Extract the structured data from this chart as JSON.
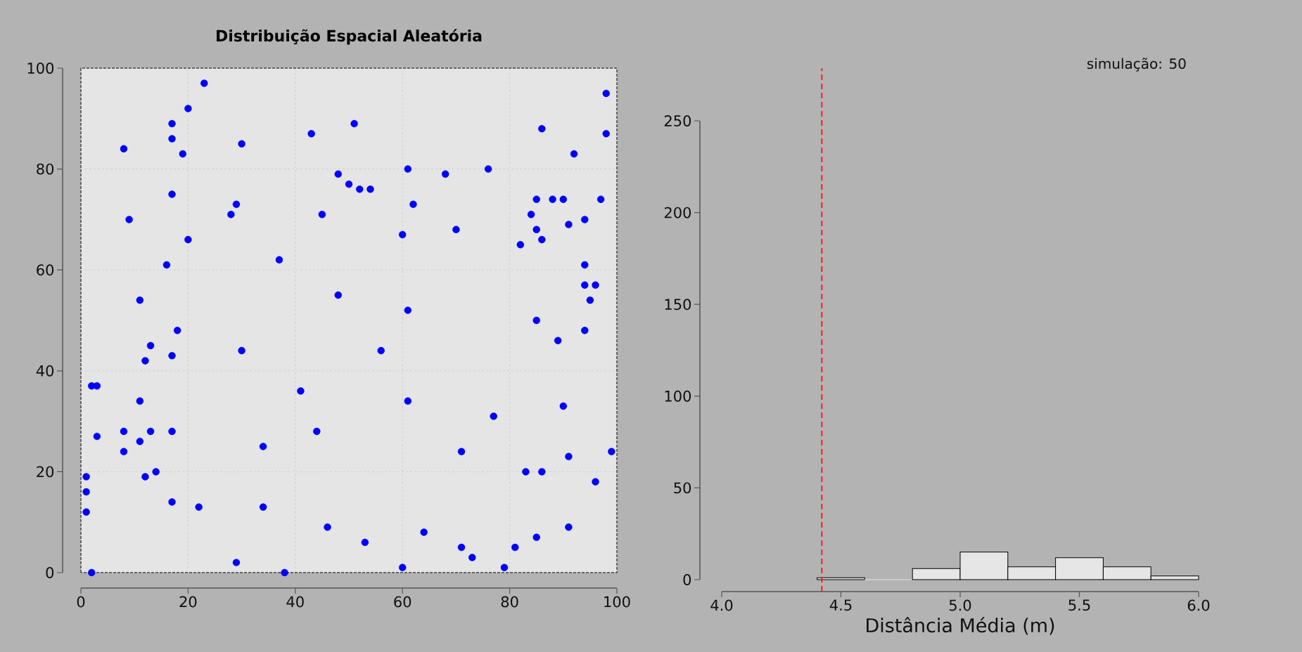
{
  "chart_data": [
    {
      "type": "scatter",
      "title": "Distribuição Espacial Aleatória",
      "color": "#0000ff",
      "marker": "circle",
      "grid": true,
      "xlim": [
        0,
        100
      ],
      "ylim": [
        0,
        100
      ],
      "xticks": [
        0,
        20,
        40,
        60,
        80,
        100
      ],
      "yticks": [
        0,
        20,
        40,
        60,
        80,
        100
      ],
      "x": [
        23,
        20,
        98,
        17,
        51,
        86,
        17,
        43,
        98,
        30,
        8,
        19,
        92,
        61,
        76,
        48,
        68,
        50,
        52,
        54,
        17,
        85,
        88,
        90,
        97,
        29,
        62,
        28,
        45,
        84,
        9,
        94,
        91,
        70,
        85,
        60,
        20,
        86,
        82,
        37,
        16,
        94,
        94,
        96,
        48,
        11,
        95,
        61,
        85,
        18,
        94,
        89,
        13,
        30,
        56,
        17,
        12,
        2,
        3,
        41,
        11,
        61,
        90,
        77,
        8,
        13,
        17,
        44,
        3,
        11,
        34,
        8,
        71,
        99,
        91,
        1,
        12,
        14,
        83,
        86,
        96,
        1,
        17,
        22,
        34,
        1,
        46,
        91,
        64,
        85,
        53,
        71,
        81,
        73,
        29,
        60,
        79,
        2,
        38
      ],
      "values": [
        97,
        92,
        95,
        89,
        89,
        88,
        86,
        87,
        87,
        85,
        84,
        83,
        83,
        80,
        80,
        79,
        79,
        77,
        76,
        76,
        75,
        74,
        74,
        74,
        74,
        73,
        73,
        71,
        71,
        71,
        70,
        70,
        69,
        68,
        68,
        67,
        66,
        66,
        65,
        62,
        61,
        61,
        57,
        57,
        55,
        54,
        54,
        52,
        50,
        48,
        48,
        46,
        45,
        44,
        44,
        43,
        42,
        37,
        37,
        36,
        34,
        34,
        33,
        31,
        28,
        28,
        28,
        28,
        27,
        26,
        25,
        24,
        24,
        24,
        23,
        19,
        19,
        20,
        20,
        20,
        18,
        16,
        14,
        13,
        13,
        12,
        9,
        9,
        8,
        7,
        6,
        5,
        5,
        3,
        2,
        1,
        1,
        0,
        0
      ]
    },
    {
      "type": "histogram",
      "xlabel": "Distância Média (m)",
      "color": "#e6e6e6",
      "grid": false,
      "bins": [
        4.4,
        4.6,
        4.8,
        5.0,
        5.2,
        5.4,
        5.6,
        5.8,
        6.0
      ],
      "values": [
        1,
        0,
        6,
        15,
        7,
        12,
        7,
        2
      ],
      "xlim": [
        4.0,
        6.0
      ],
      "ylim": [
        0,
        250
      ],
      "xticks": [
        {
          "value": 4.0,
          "label": "4.0"
        },
        4.5,
        {
          "value": 5.0,
          "label": "5.0"
        },
        5.5,
        {
          "value": 6.0,
          "label": "6.0"
        }
      ],
      "yticks": [
        0,
        50,
        100,
        150,
        200,
        250
      ],
      "ref_lines": [
        {
          "axis": "x",
          "value": 4.42,
          "color": "#ee2222",
          "line_style": "dashed"
        }
      ],
      "annotations": [
        "simulação: 50"
      ]
    }
  ]
}
